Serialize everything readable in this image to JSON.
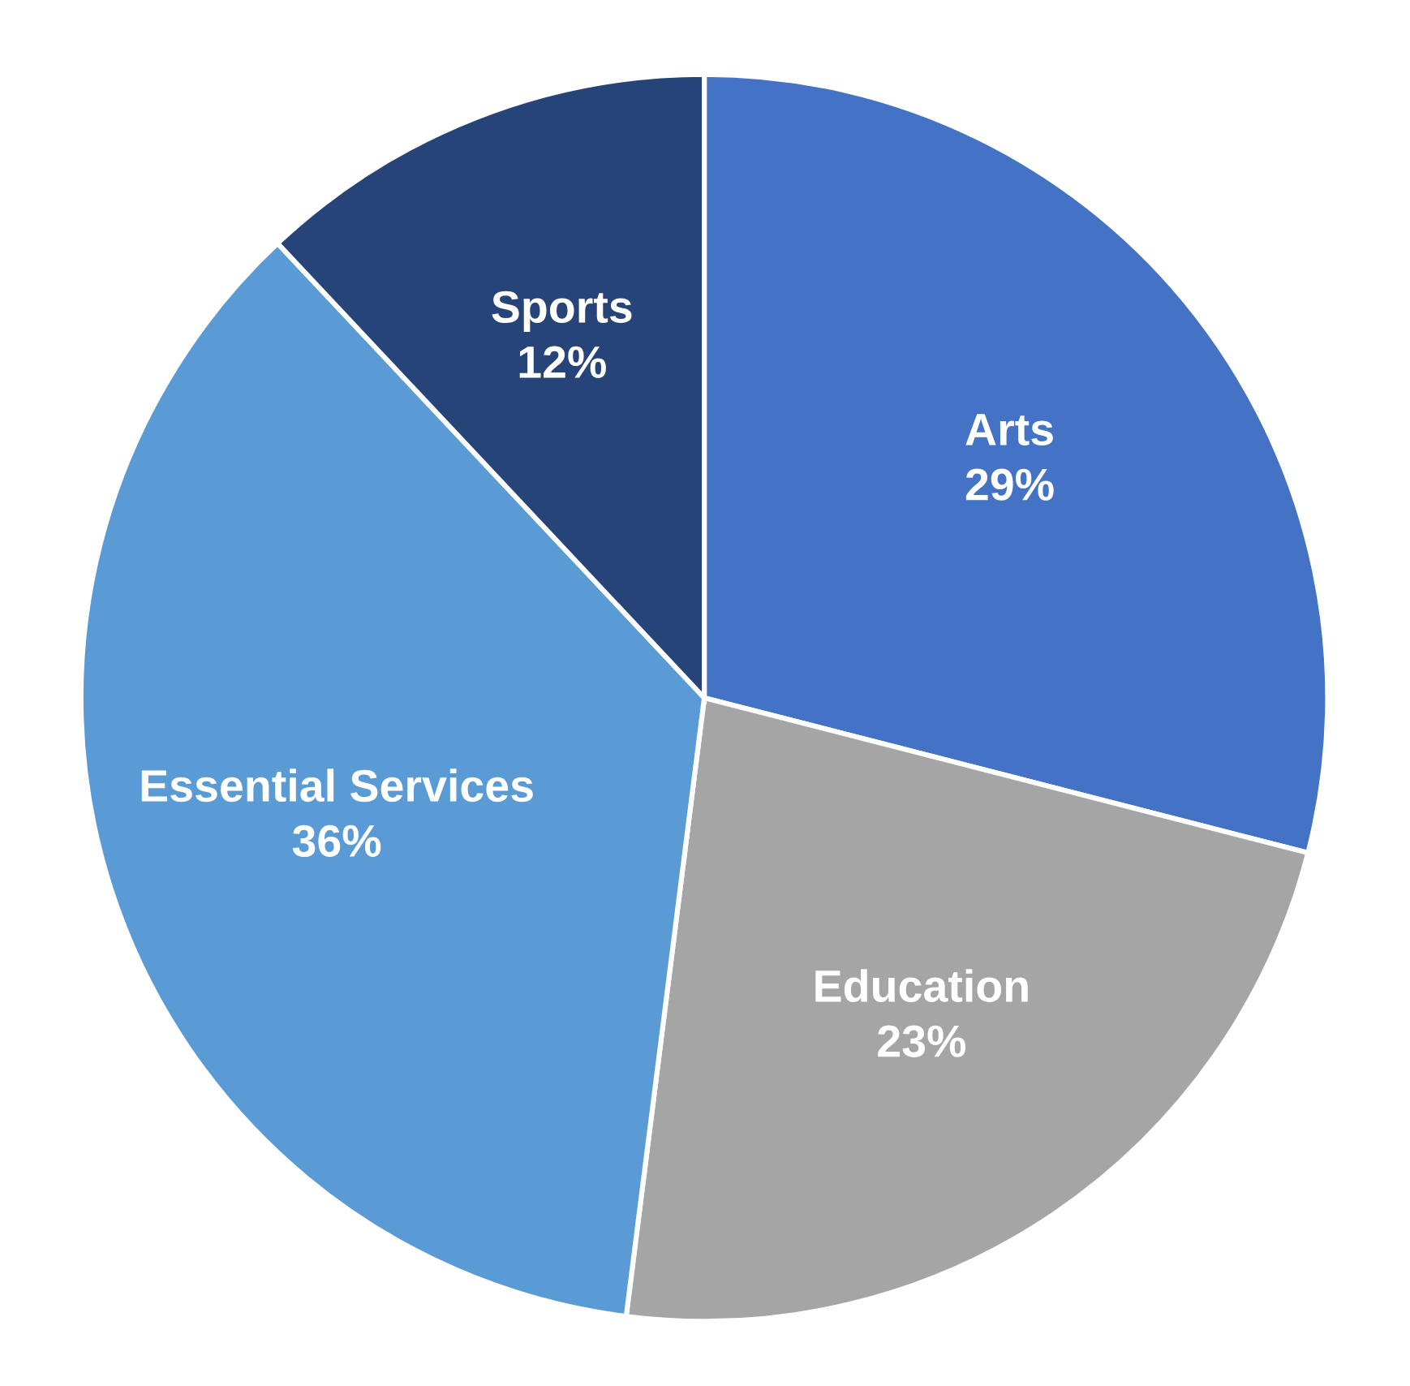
{
  "chart_data": {
    "type": "pie",
    "categories": [
      "Arts",
      "Education",
      "Essential Services",
      "Sports"
    ],
    "values": [
      29,
      23,
      36,
      12
    ],
    "value_labels": [
      "29%",
      "23%",
      "36%",
      "12%"
    ],
    "colors": [
      "#4472c4",
      "#a5a5a5",
      "#5b9bd5",
      "#264478"
    ]
  }
}
